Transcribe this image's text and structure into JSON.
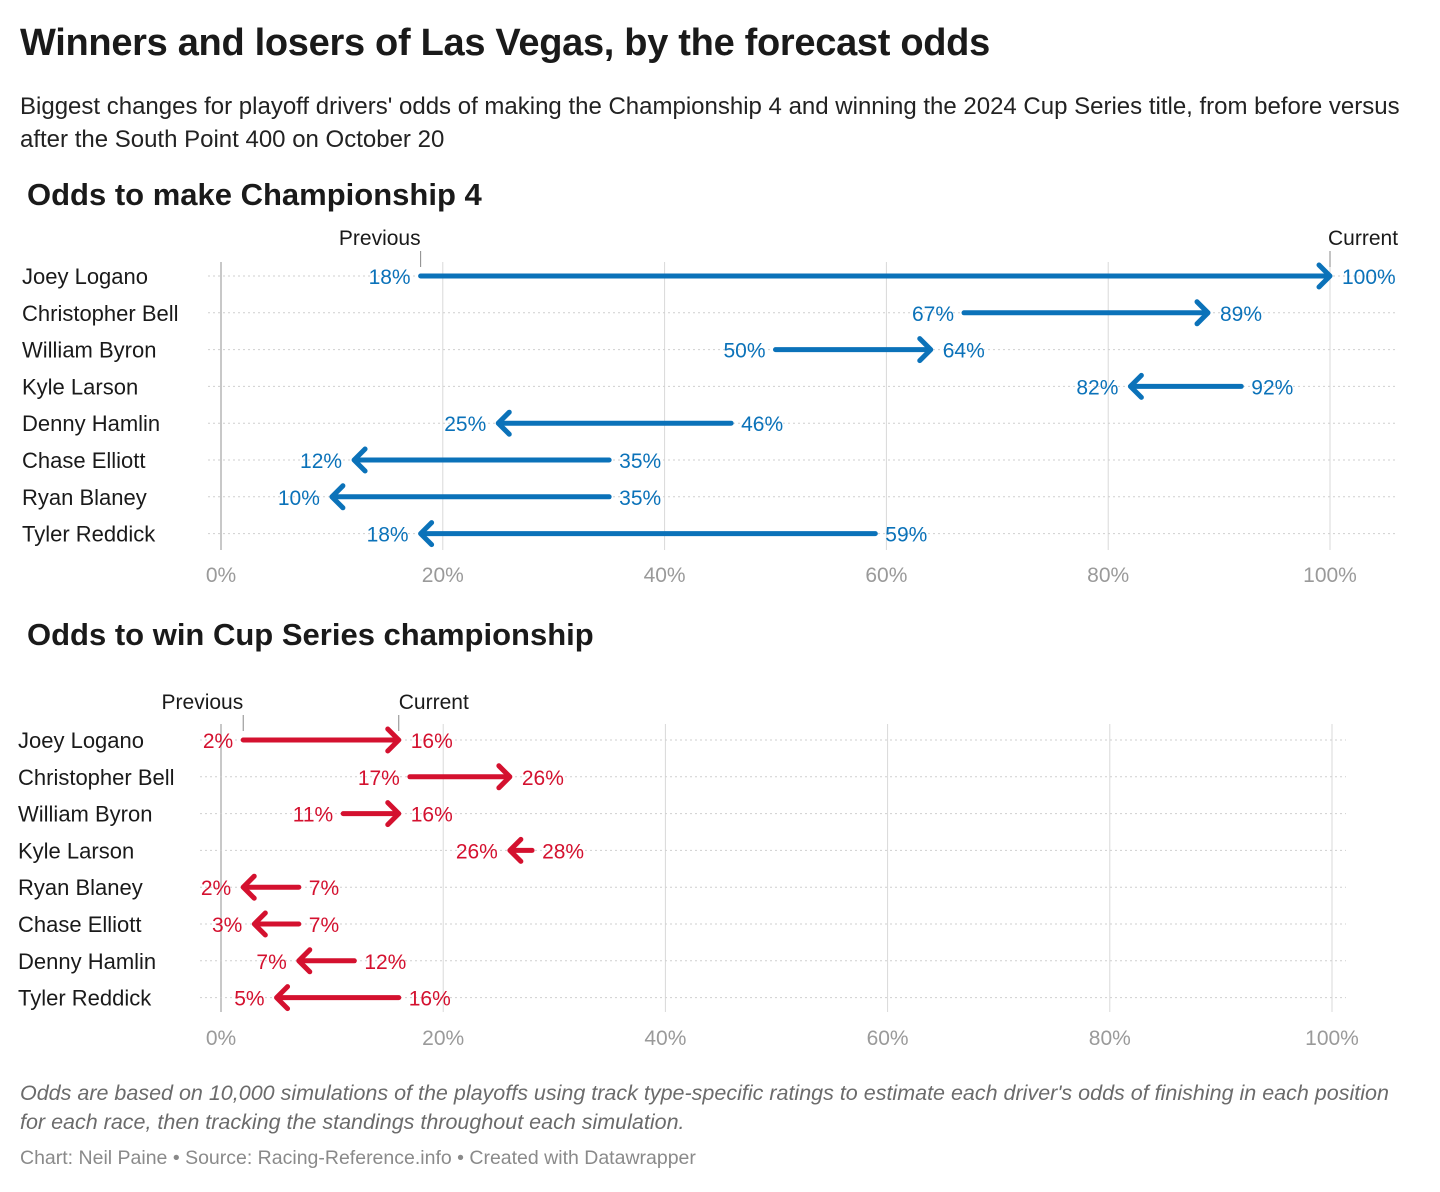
{
  "title": "Winners and losers of Las Vegas, by the forecast odds",
  "subtitle": "Biggest changes for playoff drivers' odds of making the Championship 4 and winning the 2024 Cup Series title, from before versus after the South Point 400 on October 20",
  "notes": "Odds are based on 10,000 simulations of the playoffs using track type-specific ratings to estimate each driver's odds of finishing in each position for each race, then tracking the standings throughout each simulation.",
  "credits": "Chart: Neil Paine • Source: Racing-Reference.info • Created with Datawrapper",
  "colors": {
    "blue": "#0b72b9",
    "red": "#d4112f",
    "grid": "#d9d9d9"
  },
  "chart_data": [
    {
      "type": "arrow",
      "title": "Odds to make Championship 4",
      "marker_labels": {
        "previous": "Previous",
        "current": "Current"
      },
      "xlim": [
        0,
        100
      ],
      "ticks": [
        0,
        20,
        40,
        60,
        80,
        100
      ],
      "tick_labels": [
        "0%",
        "20%",
        "40%",
        "60%",
        "80%",
        "100%"
      ],
      "color": "#0b72b9",
      "rows": [
        {
          "name": "Joey Logano",
          "previous": 18,
          "current": 100,
          "previous_label": "18%",
          "current_label": "100%"
        },
        {
          "name": "Christopher Bell",
          "previous": 67,
          "current": 89,
          "previous_label": "67%",
          "current_label": "89%"
        },
        {
          "name": "William Byron",
          "previous": 50,
          "current": 64,
          "previous_label": "50%",
          "current_label": "64%"
        },
        {
          "name": "Kyle Larson",
          "previous": 92,
          "current": 82,
          "previous_label": "92%",
          "current_label": "82%"
        },
        {
          "name": "Denny Hamlin",
          "previous": 46,
          "current": 25,
          "previous_label": "46%",
          "current_label": "25%"
        },
        {
          "name": "Chase Elliott",
          "previous": 35,
          "current": 12,
          "previous_label": "35%",
          "current_label": "12%"
        },
        {
          "name": "Ryan Blaney",
          "previous": 35,
          "current": 10,
          "previous_label": "35%",
          "current_label": "10%"
        },
        {
          "name": "Tyler Reddick",
          "previous": 59,
          "current": 18,
          "previous_label": "59%",
          "current_label": "18%"
        }
      ]
    },
    {
      "type": "arrow",
      "title": "Odds to win Cup Series championship",
      "marker_labels": {
        "previous": "Previous",
        "current": "Current"
      },
      "xlim": [
        0,
        100
      ],
      "ticks": [
        0,
        20,
        40,
        60,
        80,
        100
      ],
      "tick_labels": [
        "0%",
        "20%",
        "40%",
        "60%",
        "80%",
        "100%"
      ],
      "color": "#d4112f",
      "rows": [
        {
          "name": "Joey Logano",
          "previous": 2,
          "current": 16,
          "previous_label": "2%",
          "current_label": "16%"
        },
        {
          "name": "Christopher Bell",
          "previous": 17,
          "current": 26,
          "previous_label": "17%",
          "current_label": "26%"
        },
        {
          "name": "William Byron",
          "previous": 11,
          "current": 16,
          "previous_label": "11%",
          "current_label": "16%"
        },
        {
          "name": "Kyle Larson",
          "previous": 28,
          "current": 26,
          "previous_label": "28%",
          "current_label": "26%"
        },
        {
          "name": "Ryan Blaney",
          "previous": 7,
          "current": 2,
          "previous_label": "7%",
          "current_label": "2%"
        },
        {
          "name": "Chase Elliott",
          "previous": 7,
          "current": 3,
          "previous_label": "7%",
          "current_label": "3%"
        },
        {
          "name": "Denny Hamlin",
          "previous": 12,
          "current": 7,
          "previous_label": "12%",
          "current_label": "7%"
        },
        {
          "name": "Tyler Reddick",
          "previous": 16,
          "current": 5,
          "previous_label": "16%",
          "current_label": "5%"
        }
      ]
    }
  ]
}
